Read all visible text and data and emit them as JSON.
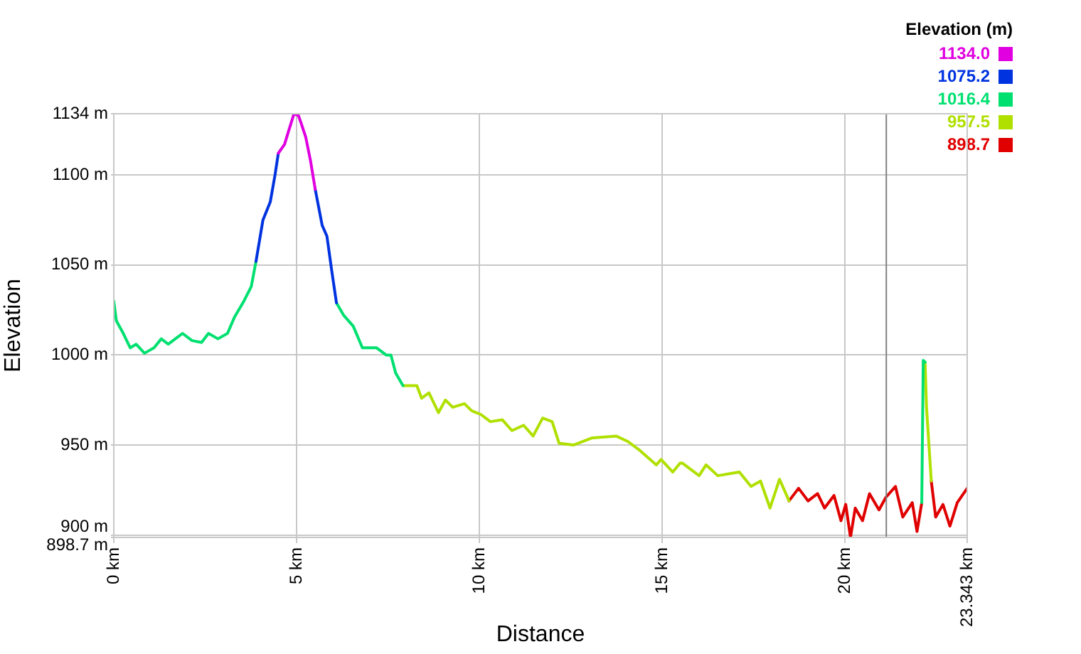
{
  "chart_data": {
    "type": "line",
    "xlabel": "Distance",
    "ylabel": "Elevation",
    "legend_title": "Elevation (m)",
    "series": [
      {
        "name": "1134.0",
        "color": "#e000e0",
        "x": [
          4.5,
          4.67,
          4.79,
          4.93,
          5.05,
          5.12,
          5.25,
          5.38,
          5.51
        ],
        "values": [
          1112,
          1117,
          1125,
          1134,
          1133,
          1129,
          1121,
          1108,
          1092
        ]
      },
      {
        "name": "1075.2",
        "color": "#0033e0",
        "x": [
          3.89,
          4.08,
          4.28,
          4.41,
          4.5,
          5.0,
          5.51,
          5.7,
          5.83,
          5.96,
          6.09
        ],
        "values": [
          1052,
          1075,
          1085,
          1100,
          1112,
          null,
          1092,
          1072,
          1066,
          1047,
          1029
        ]
      },
      {
        "name": "1016.4",
        "color": "#00e070",
        "x": [
          0,
          0.07,
          0.26,
          0.45,
          0.61,
          0.84,
          1.1,
          1.3,
          1.49,
          1.88,
          2.14,
          2.4,
          2.59,
          2.85,
          3.11,
          3.3,
          3.56,
          3.76,
          3.89,
          5.0,
          6.09,
          6.29,
          6.55,
          6.8,
          7.19,
          7.45,
          7.58,
          7.71,
          7.91,
          15,
          22.1,
          22.14,
          22.19
        ],
        "values": [
          1030,
          1019,
          1012,
          1004,
          1006,
          1001,
          1004,
          1009,
          1006,
          1012,
          1008,
          1007,
          1012,
          1009,
          1012,
          1021,
          1030,
          1038,
          1052,
          null,
          1029,
          1022,
          1016,
          1004,
          1004,
          1000,
          1000,
          990,
          983,
          null,
          918,
          997,
          996
        ]
      },
      {
        "name": "957.5",
        "color": "#b0e000",
        "x": [
          7.91,
          8.29,
          8.42,
          8.62,
          8.88,
          9.07,
          9.27,
          9.59,
          9.79,
          10.04,
          10.3,
          10.63,
          10.89,
          11.21,
          11.47,
          11.73,
          11.99,
          12.18,
          12.57,
          13.09,
          13.74,
          14.06,
          14.39,
          14.84,
          14.97,
          15.29,
          15.49,
          15.55,
          16.01,
          16.2,
          16.52,
          17.11,
          17.43,
          17.69,
          17.95,
          18.21,
          18.47,
          20,
          22.19,
          22.23,
          22.29,
          22.36
        ],
        "values": [
          983,
          983,
          976,
          979,
          968,
          975,
          971,
          973,
          969,
          967,
          963,
          964,
          958,
          961,
          955,
          965,
          963,
          951,
          950,
          954,
          955,
          952,
          947,
          939,
          942,
          935,
          940,
          940,
          933,
          939,
          933,
          935,
          927,
          930,
          915,
          931,
          919,
          null,
          996,
          971,
          952,
          930
        ]
      },
      {
        "name": "898.7",
        "color": "#e00000",
        "x": [
          18.47,
          18.73,
          18.99,
          19.25,
          19.44,
          19.7,
          19.89,
          20.02,
          20.15,
          20.28,
          20.48,
          20.67,
          20.93,
          21.12,
          21.38,
          21.58,
          21.84,
          21.97,
          22.1,
          22.3,
          22.36,
          22.48,
          22.68,
          22.87,
          23.07,
          23.343
        ],
        "values": [
          919,
          926,
          919,
          923,
          915,
          922,
          908,
          917,
          898.7,
          915,
          908,
          923,
          914,
          921,
          927,
          910,
          918,
          902,
          918,
          null,
          930,
          910,
          917,
          905,
          918,
          926
        ]
      }
    ],
    "xlim": [
      0,
      23.343
    ],
    "ylim": [
      898.7,
      1134
    ],
    "xticks": [
      {
        "value": 0,
        "label": "0 km"
      },
      {
        "value": 5,
        "label": "5 km"
      },
      {
        "value": 10,
        "label": "10 km"
      },
      {
        "value": 15,
        "label": "15 km"
      },
      {
        "value": 20,
        "label": "20 km"
      },
      {
        "value": 23.343,
        "label": "23.343 km"
      }
    ],
    "yticks": [
      {
        "value": 898.7,
        "label": "898.7 m"
      },
      {
        "value": 900,
        "label": "900 m"
      },
      {
        "value": 950,
        "label": "950 m"
      },
      {
        "value": 1000,
        "label": "1000 m"
      },
      {
        "value": 1050,
        "label": "1050 m"
      },
      {
        "value": 1100,
        "label": "1100 m"
      },
      {
        "value": 1134,
        "label": "1134 m"
      }
    ],
    "ref_lines": [
      {
        "axis": "x",
        "value": 21.13,
        "color": "#808080"
      }
    ],
    "grid": true,
    "legend": "top right",
    "marker": "none",
    "line_style": "solid"
  }
}
